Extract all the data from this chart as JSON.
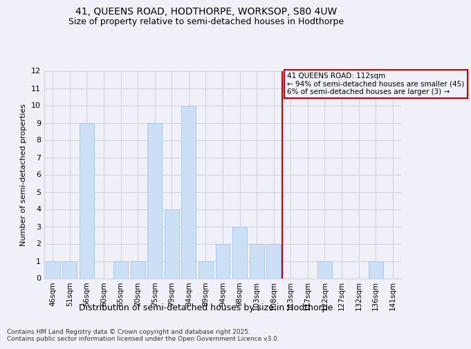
{
  "title1": "41, QUEENS ROAD, HODTHORPE, WORKSOP, S80 4UW",
  "title2": "Size of property relative to semi-detached houses in Hodthorpe",
  "xlabel": "Distribution of semi-detached houses by size in Hodthorpe",
  "ylabel": "Number of semi-detached properties",
  "categories": [
    "46sqm",
    "51sqm",
    "56sqm",
    "60sqm",
    "65sqm",
    "70sqm",
    "75sqm",
    "79sqm",
    "84sqm",
    "89sqm",
    "94sqm",
    "98sqm",
    "103sqm",
    "108sqm",
    "113sqm",
    "117sqm",
    "122sqm",
    "127sqm",
    "132sqm",
    "136sqm",
    "141sqm"
  ],
  "values": [
    1,
    1,
    9,
    0,
    1,
    1,
    9,
    4,
    10,
    1,
    2,
    3,
    2,
    2,
    0,
    0,
    1,
    0,
    0,
    1,
    0
  ],
  "bar_color": "#cce0f5",
  "bar_edge_color": "#a0c4e8",
  "vline_x": 13.5,
  "vline_color": "#cc0000",
  "annotation_text": "41 QUEENS ROAD: 112sqm\n← 94% of semi-detached houses are smaller (45)\n6% of semi-detached houses are larger (3) →",
  "ylim": [
    0,
    12
  ],
  "yticks": [
    0,
    1,
    2,
    3,
    4,
    5,
    6,
    7,
    8,
    9,
    10,
    11,
    12
  ],
  "footer1": "Contains HM Land Registry data © Crown copyright and database right 2025.",
  "footer2": "Contains public sector information licensed under the Open Government Licence v3.0.",
  "grid_color": "#d0d0d8",
  "bg_color": "#f0f0f8"
}
